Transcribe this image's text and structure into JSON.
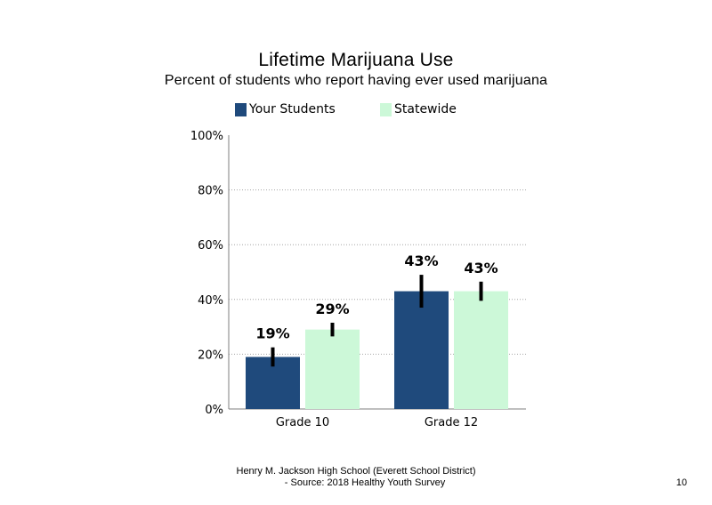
{
  "chart_data": {
    "type": "bar",
    "title": "Lifetime Marijuana Use",
    "subtitle": "Percent of students who report having ever used marijuana",
    "categories": [
      "Grade 10",
      "Grade 12"
    ],
    "series": [
      {
        "name": "Your Students",
        "color": "#1f4a7c",
        "values": [
          19,
          43
        ],
        "labels": [
          "19%",
          "43%"
        ],
        "ci_low": [
          15.5,
          37
        ],
        "ci_high": [
          22.5,
          49
        ]
      },
      {
        "name": "Statewide",
        "color": "#ccf8d8",
        "values": [
          29,
          43
        ],
        "labels": [
          "29%",
          "43%"
        ],
        "ci_low": [
          26.5,
          39.5
        ],
        "ci_high": [
          31.5,
          46.5
        ]
      }
    ],
    "ylim": [
      0,
      100
    ],
    "yticks": [
      0,
      20,
      40,
      60,
      80,
      100
    ],
    "ytick_labels": [
      "0%",
      "20%",
      "40%",
      "60%",
      "80%",
      "100%"
    ],
    "gridlines": "dotted",
    "legend_position": "top"
  },
  "footer": {
    "line1": "Henry M. Jackson High School (Everett School District)",
    "line2": "- Source: 2018 Healthy Youth Survey"
  },
  "page_number": "10"
}
